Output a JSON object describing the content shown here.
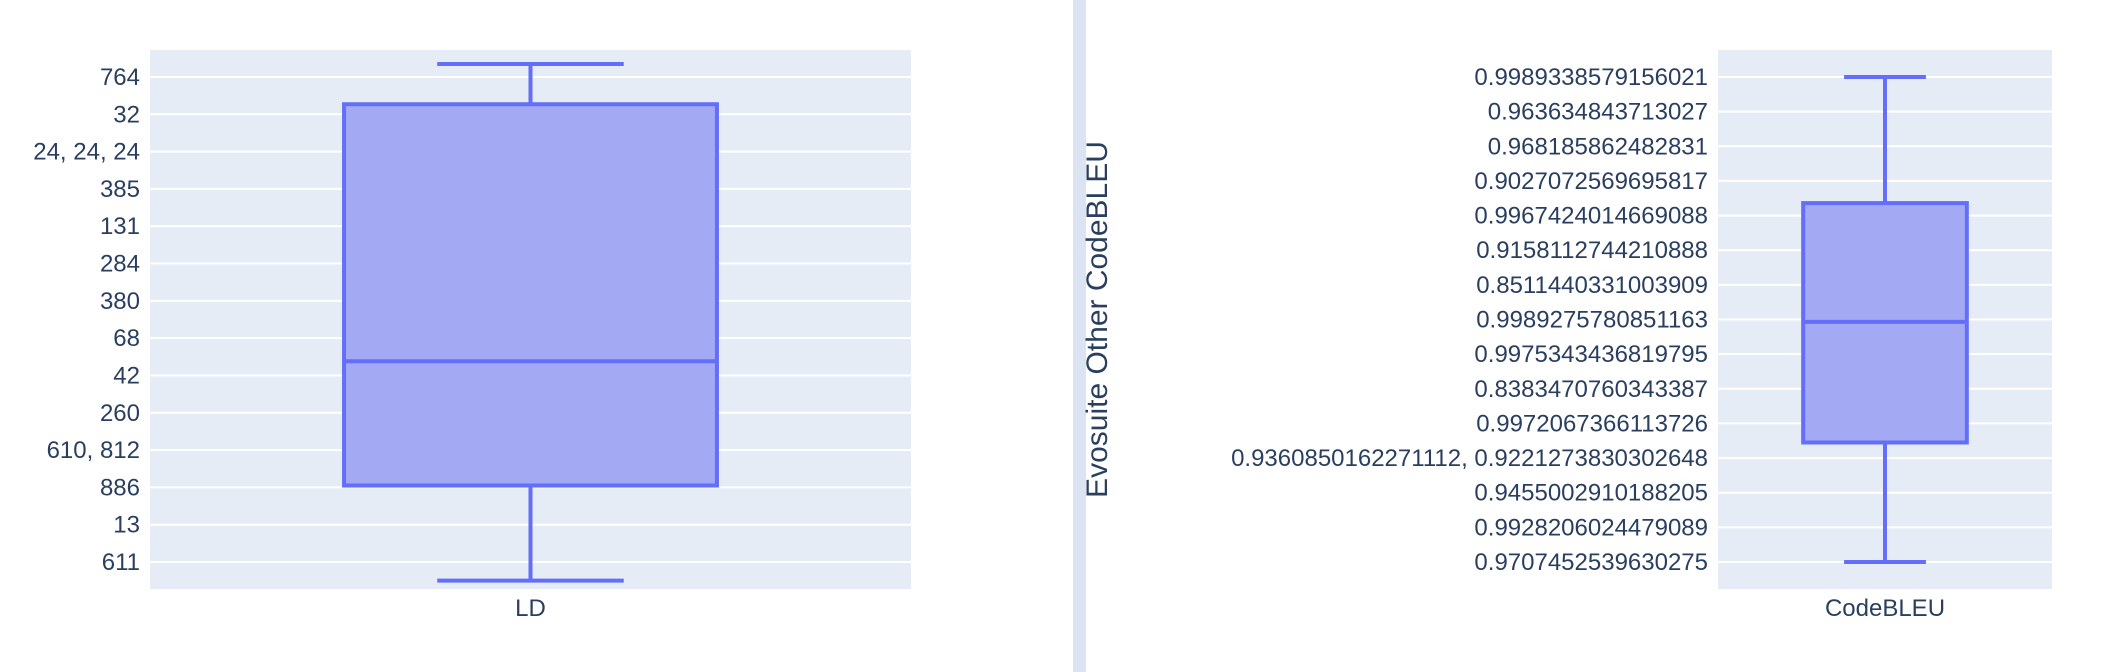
{
  "colors": {
    "plot_bg": "#e5ecf6",
    "grid": "#ffffff",
    "box_line": "#636efa",
    "box_fill": "#a3aaf3",
    "divider": "#dce3f2",
    "text": "#2a3f5f"
  },
  "chart_data": [
    {
      "type": "box",
      "xlabel": "",
      "ylabel": "",
      "grid": true,
      "categories": [
        "LD"
      ],
      "y_tick_labels": [
        "764",
        "32",
        "24, 24, 24",
        "385",
        "131",
        "284",
        "380",
        "68",
        "42",
        "260",
        "610, 812",
        "886",
        "13",
        "611"
      ],
      "y_axis_type": "category",
      "series": [
        {
          "lower_fence": -0.5,
          "q1": 2.05,
          "median": 5.38,
          "q3": 12.27,
          "upper_fence": 13.35
        }
      ]
    },
    {
      "type": "box",
      "xlabel": "",
      "ylabel": "Evosuite Other CodeBLEU",
      "grid": true,
      "categories": [
        "CodeBLEU"
      ],
      "y_tick_labels": [
        "0.9989338579156021",
        "0.963634843713027",
        "0.968185862482831",
        "0.9027072569695817",
        "0.9967424014669088",
        "0.9158112744210888",
        "0.8511440331003909",
        "0.9989275780851163",
        "0.9975343436819795",
        "0.8383470760343387",
        "0.9972067366113726",
        "0.9360850162271112, 0.9221273830302648",
        "0.9455002910188205",
        "0.9928206024479089",
        "0.9707452539630275"
      ],
      "y_axis_type": "category",
      "series": [
        {
          "lower_fence": 0,
          "q1": 3.45,
          "median": 6.93,
          "q3": 10.36,
          "upper_fence": 14
        }
      ]
    }
  ]
}
